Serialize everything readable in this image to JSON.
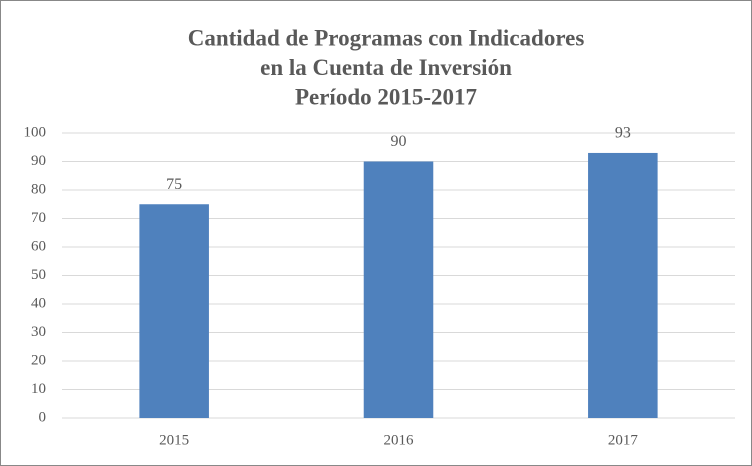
{
  "chart_data": {
    "type": "bar",
    "title": [
      "Cantidad de Programas con Indicadores",
      "en la Cuenta de Inversión",
      "Período 2015-2017"
    ],
    "categories": [
      "2015",
      "2016",
      "2017"
    ],
    "values": [
      75,
      90,
      93
    ],
    "color": "#4f81bd",
    "ylim": [
      0,
      100
    ],
    "yticks": [
      0,
      10,
      20,
      30,
      40,
      50,
      60,
      70,
      80,
      90,
      100
    ],
    "grid": true
  }
}
